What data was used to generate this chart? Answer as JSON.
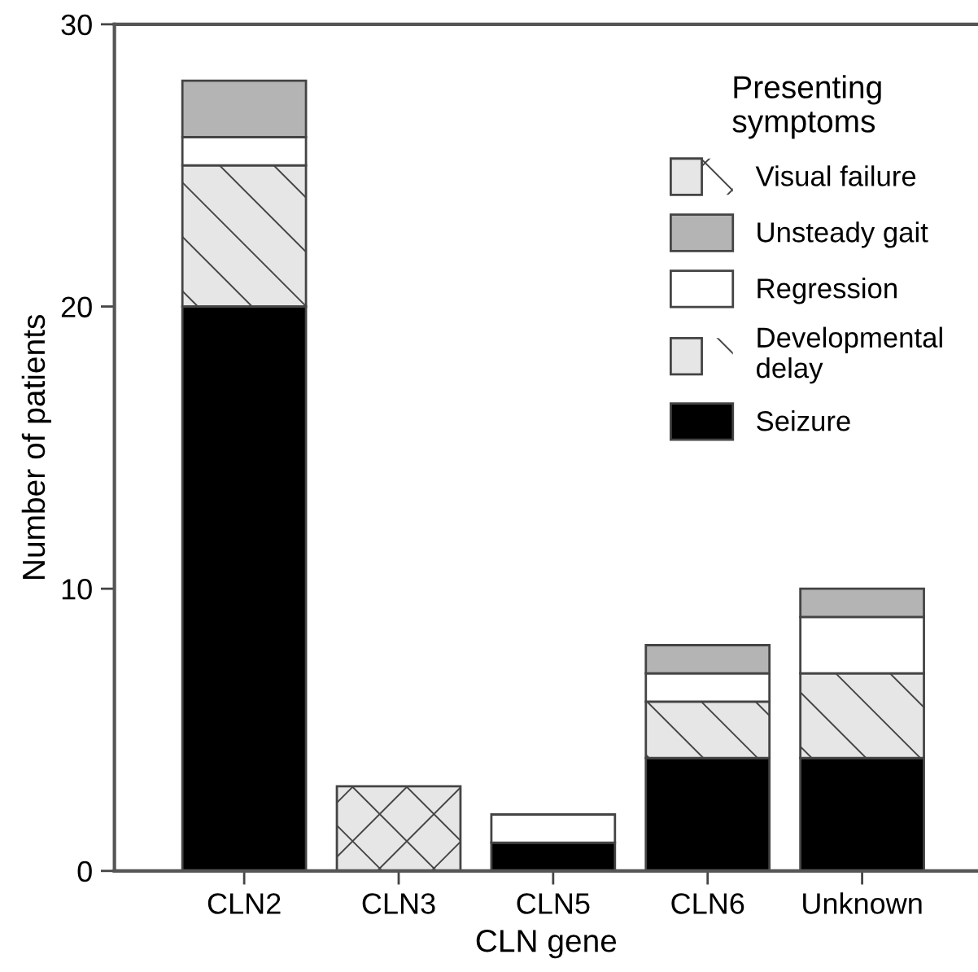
{
  "chart_data": {
    "type": "bar",
    "stacked": true,
    "xlabel": "CLN gene",
    "ylabel": "Number of patients",
    "legend_title": "Presenting symptoms",
    "legend": "top right",
    "categories": [
      "CLN2",
      "CLN3",
      "CLN5",
      "CLN6",
      "Unknown"
    ],
    "series": [
      {
        "name": "Seizure",
        "color": "#000000",
        "values": [
          20,
          0,
          1,
          4,
          4
        ]
      },
      {
        "name": "Developmental delay",
        "color": "#e6e6e6",
        "values": [
          5,
          0,
          0,
          2,
          3
        ]
      },
      {
        "name": "Regression",
        "color": "#ffffff",
        "values": [
          1,
          0,
          1,
          1,
          2
        ]
      },
      {
        "name": "Unsteady gait",
        "color": "#b4b4b4",
        "values": [
          2,
          0,
          0,
          1,
          1
        ]
      },
      {
        "name": "Visual failure",
        "color": "#e6e6e6",
        "values": [
          0,
          3,
          0,
          0,
          0
        ]
      }
    ],
    "ylim": [
      0,
      30
    ],
    "yticks": [
      0,
      10,
      20,
      30
    ],
    "grid": false
  }
}
